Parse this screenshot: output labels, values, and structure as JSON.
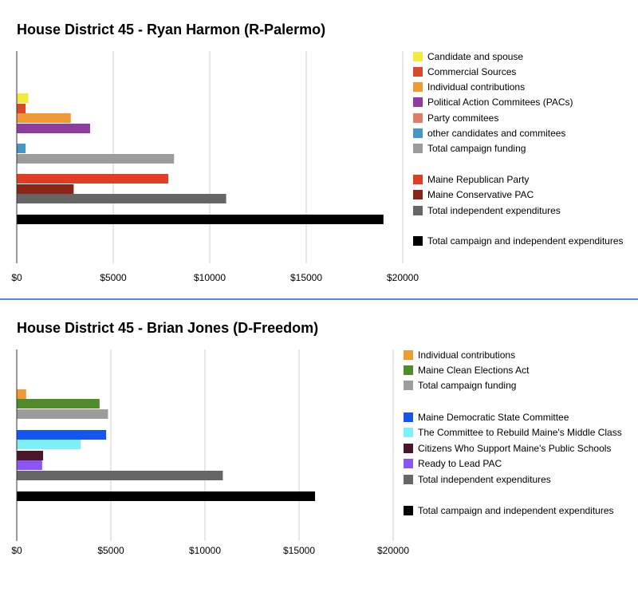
{
  "chart_data": [
    {
      "type": "bar",
      "orientation": "horizontal",
      "title": "House District 45 - Ryan Harmon (R-Palermo)",
      "xlim": [
        0,
        20000
      ],
      "x_ticks": [
        "$0",
        "$5000",
        "$10000",
        "$15000",
        "$20000"
      ],
      "grid": true,
      "legend_position": "right",
      "series": [
        {
          "name": "Candidate and spouse",
          "value": 600,
          "color": "#f4ea3c"
        },
        {
          "name": "Commercial Sources",
          "value": 460,
          "color": "#d84a2b"
        },
        {
          "name": "Individual contributions",
          "value": 2800,
          "color": "#ef9a34"
        },
        {
          "name": "Political Action Commitees (PACs)",
          "value": 3800,
          "color": "#8e3c9e"
        },
        {
          "name": "Party commitees",
          "value": 0,
          "color": "#e27c66"
        },
        {
          "name": "other candidates and commitees",
          "value": 460,
          "color": "#4696c6"
        },
        {
          "name": "Total campaign funding",
          "value": 8150,
          "color": "#9c9c9c"
        },
        {
          "name": "Maine Republican Party",
          "value": 7850,
          "color": "#e03d25"
        },
        {
          "name": "Maine Conservative PAC",
          "value": 2950,
          "color": "#8a2417"
        },
        {
          "name": "Total independent expenditures",
          "value": 10850,
          "color": "#666666"
        },
        {
          "name": "Total campaign and independent expenditures",
          "value": 19000,
          "color": "#000000"
        }
      ]
    },
    {
      "type": "bar",
      "orientation": "horizontal",
      "title": "House District 45 - Brian Jones (D-Freedom)",
      "xlim": [
        0,
        20000
      ],
      "x_ticks": [
        "$0",
        "$5000",
        "$10000",
        "$15000",
        "$20000"
      ],
      "grid": true,
      "legend_position": "right",
      "series": [
        {
          "name": "Individual contributions",
          "value": 500,
          "color": "#ef9a34"
        },
        {
          "name": "Maine Clean Elections Act",
          "value": 4400,
          "color": "#4f8a2b"
        },
        {
          "name": "Total campaign funding",
          "value": 4850,
          "color": "#9c9c9c"
        },
        {
          "name": "Maine Democratic State Committee",
          "value": 4750,
          "color": "#1555f2"
        },
        {
          "name": "The Committee to Rebuild Maine's Middle Class",
          "value": 3400,
          "color": "#7ef0f7"
        },
        {
          "name": "Citizens Who Support Maine's Public Schools",
          "value": 1400,
          "color": "#4a1629"
        },
        {
          "name": "Ready to Lead PAC",
          "value": 1350,
          "color": "#8b54f4"
        },
        {
          "name": "Total independent expenditures",
          "value": 10950,
          "color": "#666666"
        },
        {
          "name": "Total campaign and independent expenditures",
          "value": 15850,
          "color": "#000000"
        }
      ]
    }
  ]
}
